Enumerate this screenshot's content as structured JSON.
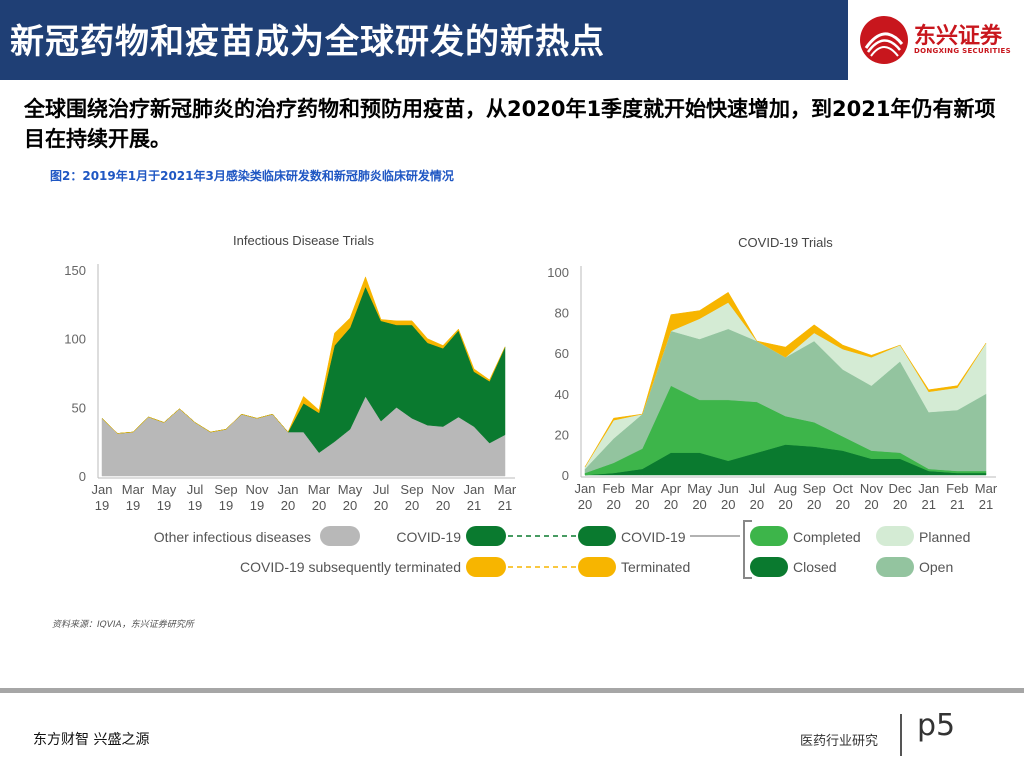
{
  "header": {
    "title": "新冠药物和疫苗成为全球研发的新热点"
  },
  "logo": {
    "name": "东兴证券",
    "name_en": "DONGXING SECURITIES",
    "color": "#c8161d"
  },
  "lead_text": "全球围绕治疗新冠肺炎的治疗药物和预防用疫苗，从2020年1季度就开始快速增加，到2021年仍有新项目在持续开展。",
  "figure_caption": "图2：2019年1月于2021年3月感染类临床研发数和新冠肺炎临床研发情况",
  "source": "资料来源：IQVIA，东兴证券研究所",
  "footer": {
    "left": "东方财智 兴盛之源",
    "right": "医药行业研究",
    "page": "p5"
  },
  "chart_data": [
    {
      "type": "area",
      "title": "Infectious Disease Trials",
      "categories": [
        "Jan 19",
        "Feb 19",
        "Mar 19",
        "Apr 19",
        "May 19",
        "Jun 19",
        "Jul 19",
        "Aug 19",
        "Sep 19",
        "Oct 19",
        "Nov 19",
        "Dec 19",
        "Jan 20",
        "Feb 20",
        "Mar 20",
        "Apr 20",
        "May 20",
        "Jun 20",
        "Jul 20",
        "Aug 20",
        "Sep 20",
        "Oct 20",
        "Nov 20",
        "Dec 20",
        "Jan 21",
        "Feb 21",
        "Mar 21"
      ],
      "tick_labels": [
        [
          "Jan",
          "19"
        ],
        [
          "Mar",
          "19"
        ],
        [
          "May",
          "19"
        ],
        [
          "Jul",
          "19"
        ],
        [
          "Sep",
          "19"
        ],
        [
          "Nov",
          "19"
        ],
        [
          "Jan",
          "20"
        ],
        [
          "Mar",
          "20"
        ],
        [
          "May",
          "20"
        ],
        [
          "Jul",
          "20"
        ],
        [
          "Sep",
          "20"
        ],
        [
          "Nov",
          "20"
        ],
        [
          "Jan",
          "21"
        ],
        [
          "Mar",
          "21"
        ]
      ],
      "stacked": true,
      "ylim": [
        0,
        150
      ],
      "yticks": [
        0,
        50,
        100,
        150
      ],
      "series": [
        {
          "name": "Other infectious diseases",
          "color": "#b8b8b8",
          "values": [
            42,
            31,
            32,
            43,
            39,
            49,
            39,
            32,
            34,
            45,
            42,
            45,
            32,
            32,
            17,
            25,
            34,
            58,
            40,
            50,
            42,
            37,
            36,
            43,
            36,
            24,
            30
          ]
        },
        {
          "name": "COVID-19",
          "color": "#0a7a2f",
          "values": [
            0,
            0,
            0,
            0,
            0,
            0,
            0,
            0,
            0,
            0,
            0,
            0,
            0,
            21,
            29,
            70,
            74,
            80,
            73,
            60,
            68,
            60,
            57,
            63,
            40,
            45,
            64
          ]
        },
        {
          "name": "COVID-19 subsequently terminated",
          "color": "#f7b500",
          "values": [
            0,
            0,
            0,
            0,
            0,
            0,
            0,
            0,
            0,
            0,
            0,
            0,
            0,
            5,
            2,
            9,
            7,
            7,
            1,
            3,
            3,
            3,
            2,
            1,
            2,
            1,
            0
          ]
        }
      ]
    },
    {
      "type": "area",
      "title": "COVID-19 Trials",
      "categories": [
        "Jan 20",
        "Feb 20",
        "Mar 20",
        "Apr 20",
        "May 20",
        "Jun 20",
        "Jul 20",
        "Aug 20",
        "Sep 20",
        "Oct 20",
        "Nov 20",
        "Dec 20",
        "Jan 21",
        "Feb 21",
        "Mar 21"
      ],
      "tick_labels": [
        [
          "Jan",
          "20"
        ],
        [
          "Feb",
          "20"
        ],
        [
          "Mar",
          "20"
        ],
        [
          "Apr",
          "20"
        ],
        [
          "May",
          "20"
        ],
        [
          "Jun",
          "20"
        ],
        [
          "Jul",
          "20"
        ],
        [
          "Aug",
          "20"
        ],
        [
          "Sep",
          "20"
        ],
        [
          "Oct",
          "20"
        ],
        [
          "Nov",
          "20"
        ],
        [
          "Dec",
          "20"
        ],
        [
          "Jan",
          "21"
        ],
        [
          "Feb",
          "21"
        ],
        [
          "Mar",
          "21"
        ]
      ],
      "stacked": true,
      "ylim": [
        0,
        100
      ],
      "yticks": [
        0,
        20,
        40,
        60,
        80,
        100
      ],
      "series": [
        {
          "name": "Closed",
          "color": "#0a7a2f",
          "values": [
            0,
            1,
            3,
            11,
            11,
            7,
            11,
            15,
            14,
            12,
            8,
            8,
            2,
            1,
            1
          ]
        },
        {
          "name": "Completed",
          "color": "#3db54a",
          "values": [
            1,
            5,
            10,
            33,
            26,
            30,
            25,
            14,
            12,
            7,
            4,
            3,
            1,
            1,
            1
          ]
        },
        {
          "name": "Open",
          "color": "#93c49f",
          "values": [
            2,
            12,
            17,
            27,
            30,
            35,
            30,
            29,
            40,
            33,
            32,
            45,
            28,
            30,
            38
          ]
        },
        {
          "name": "Planned",
          "color": "#d4ebd4",
          "values": [
            1,
            9,
            0,
            0,
            10,
            13,
            0,
            0,
            4,
            10,
            14,
            8,
            10,
            11,
            25
          ]
        },
        {
          "name": "Terminated",
          "color": "#f7b500",
          "values": [
            0,
            1,
            0,
            8,
            4,
            5,
            0,
            5,
            4,
            2,
            1,
            0,
            1,
            1,
            0
          ]
        }
      ]
    }
  ],
  "legend": {
    "left_col": [
      "Other infectious diseases",
      "COVID-19",
      "COVID-19 subsequently terminated"
    ],
    "right_col": [
      "COVID-19",
      "Terminated"
    ],
    "status_col1": [
      "Completed",
      "Closed"
    ],
    "status_col2": [
      "Planned",
      "Open"
    ]
  }
}
